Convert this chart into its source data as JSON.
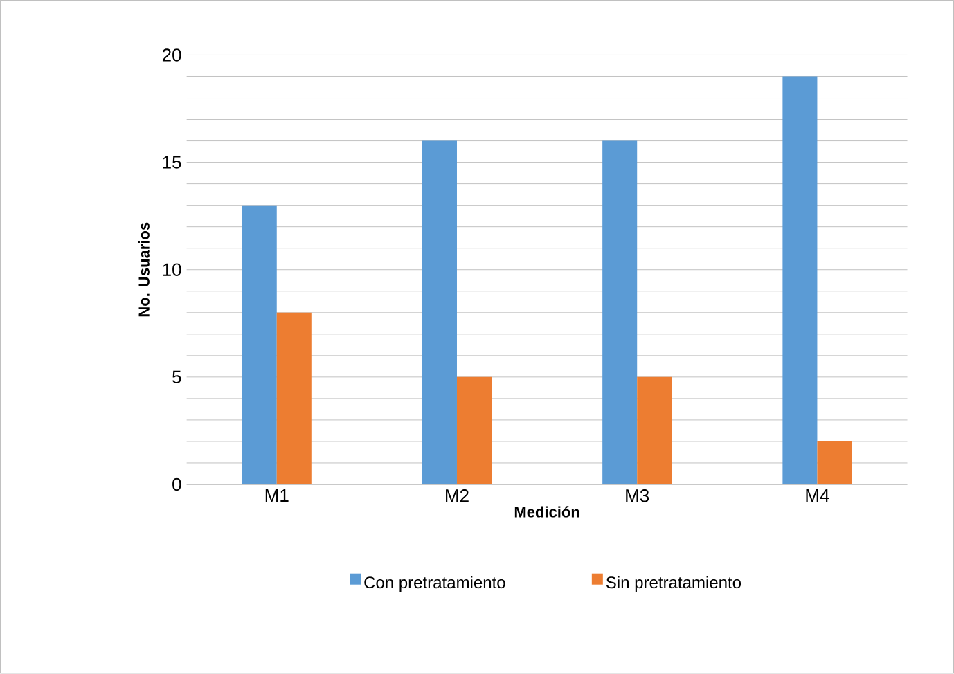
{
  "chart_data": {
    "type": "bar",
    "xlabel": "Medición",
    "ylabel": "No. Usuarios",
    "categories": [
      "M1",
      "M2",
      "M3",
      "M4"
    ],
    "series": [
      {
        "name": "Con pretratamiento",
        "color": "#5b9bd5",
        "values": [
          13,
          16,
          16,
          19
        ]
      },
      {
        "name": "Sin pretratamiento",
        "color": "#ed7d31",
        "values": [
          8,
          5,
          5,
          2
        ]
      }
    ],
    "ylim": [
      0,
      20
    ],
    "yticks": [
      0,
      5,
      10,
      15,
      20
    ],
    "grid": "y",
    "legend": "bottom"
  }
}
